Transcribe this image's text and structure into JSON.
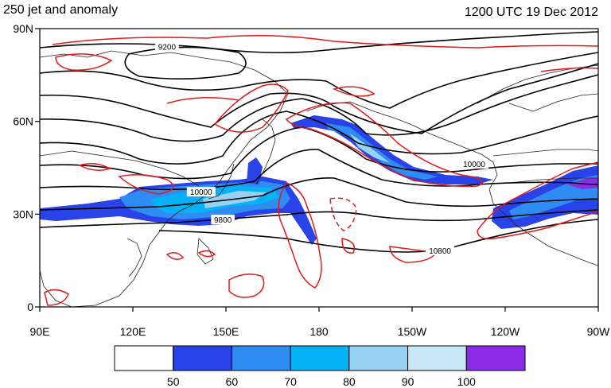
{
  "title_left": "250 jet and anomaly",
  "title_right": "1200 UTC 19 Dec 2012",
  "lat_ticks": [
    {
      "label": "90N",
      "value": 90
    },
    {
      "label": "60N",
      "value": 60
    },
    {
      "label": "30N",
      "value": 30
    },
    {
      "label": "0",
      "value": 0
    }
  ],
  "lon_ticks": [
    {
      "label": "90E",
      "value": 90
    },
    {
      "label": "120E",
      "value": 120
    },
    {
      "label": "150E",
      "value": 150
    },
    {
      "label": "180",
      "value": 180
    },
    {
      "label": "150W",
      "value": 210
    },
    {
      "label": "120W",
      "value": 240
    },
    {
      "label": "90W",
      "value": 270
    }
  ],
  "contour_labels": [
    {
      "text": "9200",
      "lon": 131,
      "lat": 84
    },
    {
      "text": "10000",
      "lon": 142,
      "lat": 37
    },
    {
      "text": "9800",
      "lon": 149,
      "lat": 28
    },
    {
      "text": "10000",
      "lon": 230,
      "lat": 46
    },
    {
      "text": "10800",
      "lon": 219,
      "lat": 18
    }
  ],
  "colorbar": {
    "labels": [
      "50",
      "60",
      "70",
      "80",
      "90",
      "100"
    ],
    "colors": [
      "#ffffff",
      "#2a43e8",
      "#2f8cf2",
      "#05b2f5",
      "#98d2f2",
      "#c8e8f8",
      "#8a2be6"
    ]
  },
  "colors": {
    "height_contour": "#000000",
    "anomaly_contour": "#e01a1a",
    "coastline": "#222222"
  }
}
